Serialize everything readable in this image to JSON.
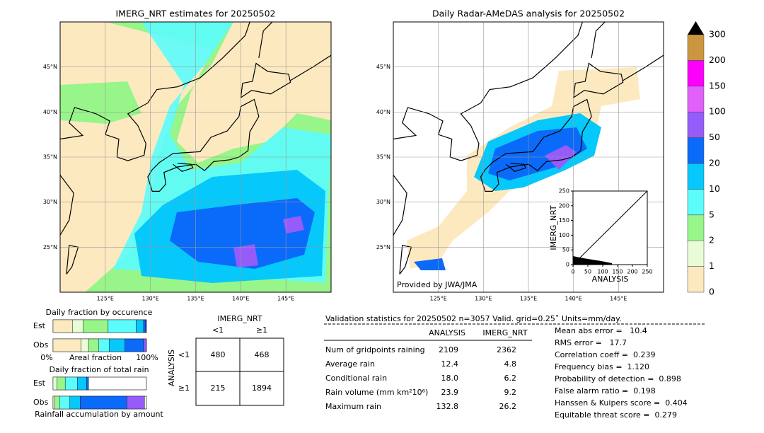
{
  "maps": [
    {
      "title": "IMERG_NRT estimates for 20250502",
      "xlim": [
        120,
        150
      ],
      "ylim": [
        20,
        50
      ],
      "xticks": [
        {
          "value": 125,
          "label": "125°E"
        },
        {
          "value": 130,
          "label": "130°E"
        },
        {
          "value": 135,
          "label": "135°E"
        },
        {
          "value": 140,
          "label": "140°E"
        },
        {
          "value": 145,
          "label": "145°E"
        }
      ],
      "yticks": [
        {
          "value": 45,
          "label": "45°N"
        },
        {
          "value": 40,
          "label": "40°N"
        },
        {
          "value": 35,
          "label": "35°N"
        },
        {
          "value": 30,
          "label": "30°N"
        },
        {
          "value": 25,
          "label": "25°N"
        }
      ]
    },
    {
      "title": "Daily Radar-AMeDAS analysis for 20250502",
      "credit": "Provided by JWA/JMA",
      "xlim": [
        120,
        150
      ],
      "ylim": [
        20,
        50
      ],
      "xticks": [
        {
          "value": 125,
          "label": "125°E"
        },
        {
          "value": 130,
          "label": "130°E"
        },
        {
          "value": 135,
          "label": "135°E"
        },
        {
          "value": 140,
          "label": "140°E"
        },
        {
          "value": 145,
          "label": "145°E"
        }
      ],
      "yticks": [
        {
          "value": 45,
          "label": "45°N"
        },
        {
          "value": 40,
          "label": "40°N"
        },
        {
          "value": 35,
          "label": "35°N"
        },
        {
          "value": 30,
          "label": "30°N"
        },
        {
          "value": 25,
          "label": "25°N"
        }
      ]
    }
  ],
  "colorbar": {
    "levels": [
      0,
      1,
      2,
      5,
      10,
      20,
      50,
      100,
      150,
      200,
      300
    ],
    "colors": [
      "#fde9c0",
      "#e8fcd8",
      "#98f58a",
      "#5cfcfc",
      "#06c8fa",
      "#0a6afa",
      "#965cfa",
      "#e060fa",
      "#fc00fc",
      "#cc9640"
    ]
  },
  "scatter": {
    "xlabel": "ANALYSIS",
    "ylabel": "IMERG_NRT",
    "xlim": [
      0,
      250
    ],
    "ylim": [
      0,
      250
    ],
    "xticks": [
      0,
      50,
      100,
      150,
      200,
      250
    ],
    "yticks": [
      0,
      50,
      100,
      150,
      200,
      250
    ]
  },
  "occurrence": {
    "title": "Daily fraction by occurence",
    "rows": [
      "Est",
      "Obs"
    ],
    "axis": [
      "0%",
      "Areal fraction",
      "100%"
    ],
    "segments": [
      [
        21,
        11,
        27,
        30,
        8,
        2,
        1
      ],
      [
        30,
        8,
        11,
        11,
        17,
        20,
        3
      ]
    ]
  },
  "total": {
    "title": "Daily fraction of total rain",
    "rows": [
      "Est",
      "Obs"
    ],
    "footer": "Rainfall accumulation by amount",
    "segments": [
      [
        0,
        4,
        9,
        13,
        10,
        2,
        0
      ],
      [
        0,
        2,
        5,
        11,
        11,
        50,
        19
      ]
    ]
  },
  "contingency": {
    "col_title": "IMERG_NRT",
    "row_title": "ANALYSIS",
    "cols": [
      "<1",
      "≥1"
    ],
    "rows": [
      "<1",
      "≥1"
    ],
    "cells": [
      [
        "480",
        "468"
      ],
      [
        "215",
        "1894"
      ]
    ]
  },
  "validation": {
    "header": "Validation statistics for 20250502  n=3057 Valid. grid=0.25˚ Units=mm/day.",
    "columns": [
      "ANALYSIS",
      "IMERG_NRT"
    ],
    "rows": [
      [
        "Num of gridpoints raining",
        "2109",
        "2362"
      ],
      [
        "Average rain",
        "12.4",
        "4.8"
      ],
      [
        "Conditional rain",
        "18.0",
        "6.2"
      ],
      [
        "Rain volume (mm km²10⁶)",
        "23.9",
        "9.2"
      ],
      [
        "Maximum rain",
        "132.8",
        "26.2"
      ]
    ],
    "scores": [
      "Mean abs error =   10.4",
      "RMS error =   17.7",
      "Correlation coeff =  0.239",
      "Frequency bias =  1.120",
      "Probability of detection =  0.898",
      "False alarm ratio =  0.198",
      "Hanssen & Kuipers score =  0.404",
      "Equitable threat score =  0.279"
    ]
  }
}
